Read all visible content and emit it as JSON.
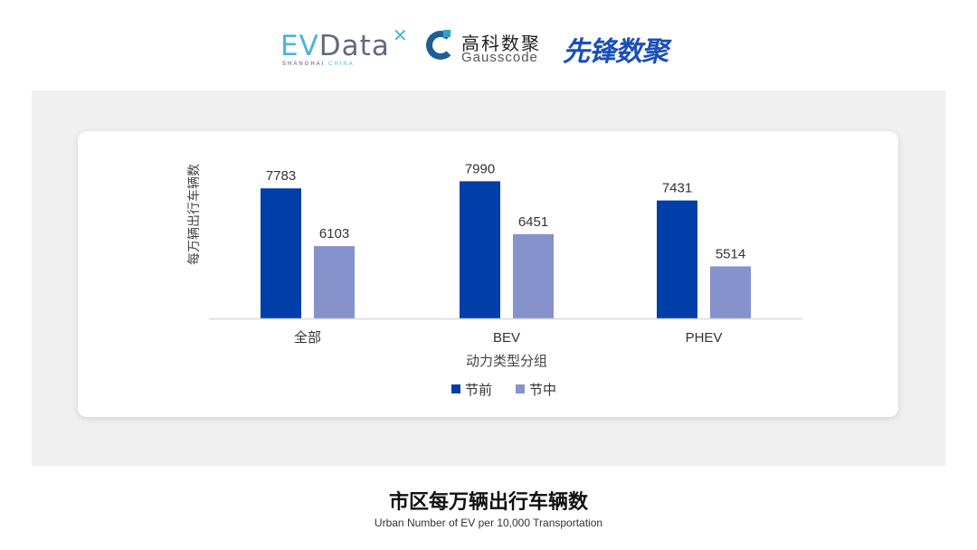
{
  "logos": {
    "evdata": "EVData",
    "evdata_sub": "SHANGHAI CHINA",
    "gausscode_cn": "高科数聚",
    "gausscode_en": "Gausscode",
    "xianfeng": "先锋数聚"
  },
  "title": "市区每万辆出行车辆数",
  "subtitle": "Urban Number of EV per 10,000 Transportation",
  "chart_data": {
    "type": "bar",
    "categories": [
      "全部",
      "BEV",
      "PHEV"
    ],
    "series": [
      {
        "name": "节前",
        "values": [
          7783,
          7990,
          7431
        ],
        "color": "#003ea8"
      },
      {
        "name": "节中",
        "values": [
          6103,
          6451,
          5514
        ],
        "color": "#8592cc"
      }
    ],
    "xlabel": "动力类型分组",
    "ylabel": "每万辆出行车辆数",
    "ylim": [
      4000,
      9000
    ],
    "grid": false,
    "legend": "bottom"
  }
}
